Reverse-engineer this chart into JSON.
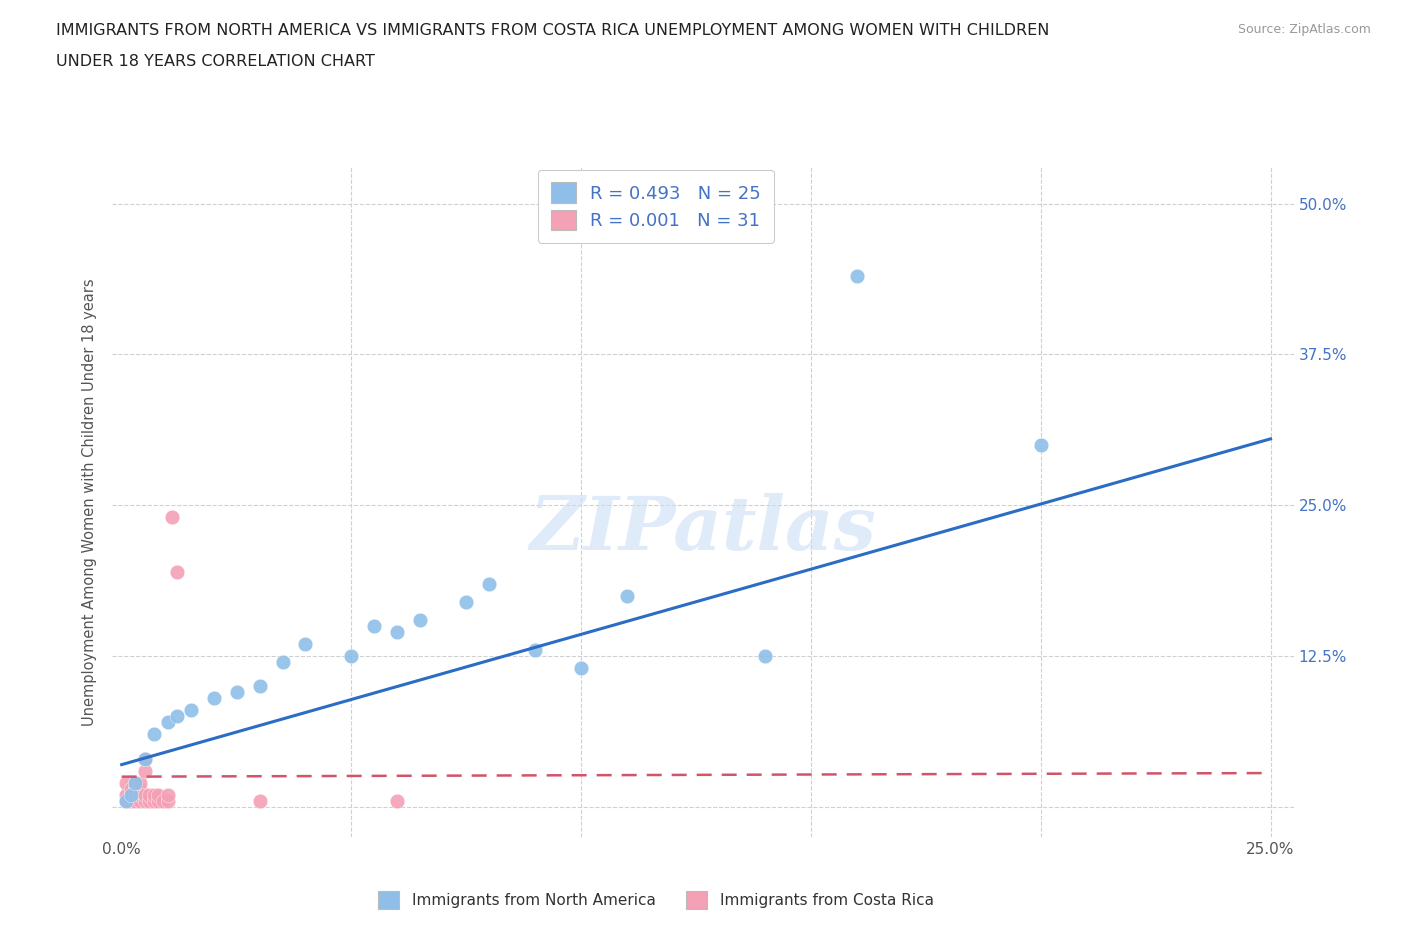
{
  "title_line1": "IMMIGRANTS FROM NORTH AMERICA VS IMMIGRANTS FROM COSTA RICA UNEMPLOYMENT AMONG WOMEN WITH CHILDREN",
  "title_line2": "UNDER 18 YEARS CORRELATION CHART",
  "source_text": "Source: ZipAtlas.com",
  "ylabel": "Unemployment Among Women with Children Under 18 years",
  "watermark": "ZIPatlas",
  "blue_R": 0.493,
  "blue_N": 25,
  "pink_R": 0.001,
  "pink_N": 31,
  "blue_scatter_x": [
    0.001,
    0.002,
    0.003,
    0.005,
    0.007,
    0.01,
    0.012,
    0.015,
    0.02,
    0.025,
    0.03,
    0.035,
    0.04,
    0.05,
    0.055,
    0.06,
    0.065,
    0.075,
    0.08,
    0.09,
    0.1,
    0.11,
    0.14,
    0.2,
    0.16
  ],
  "blue_scatter_y": [
    0.005,
    0.01,
    0.02,
    0.04,
    0.06,
    0.07,
    0.075,
    0.08,
    0.09,
    0.095,
    0.1,
    0.12,
    0.135,
    0.125,
    0.15,
    0.145,
    0.155,
    0.17,
    0.185,
    0.13,
    0.115,
    0.175,
    0.125,
    0.3,
    0.44
  ],
  "pink_scatter_x": [
    0.001,
    0.001,
    0.001,
    0.002,
    0.002,
    0.002,
    0.003,
    0.003,
    0.003,
    0.003,
    0.004,
    0.004,
    0.004,
    0.004,
    0.005,
    0.005,
    0.005,
    0.005,
    0.006,
    0.006,
    0.007,
    0.007,
    0.008,
    0.008,
    0.009,
    0.01,
    0.01,
    0.011,
    0.012,
    0.03,
    0.06
  ],
  "pink_scatter_y": [
    0.005,
    0.01,
    0.02,
    0.005,
    0.01,
    0.015,
    0.005,
    0.01,
    0.015,
    0.02,
    0.005,
    0.01,
    0.015,
    0.02,
    0.005,
    0.01,
    0.03,
    0.04,
    0.005,
    0.01,
    0.005,
    0.01,
    0.005,
    0.01,
    0.005,
    0.005,
    0.01,
    0.24,
    0.195,
    0.005,
    0.005
  ],
  "blue_line_x": [
    0.0,
    0.25
  ],
  "blue_line_y": [
    0.035,
    0.305
  ],
  "pink_line_x": [
    0.0,
    0.25
  ],
  "pink_line_y": [
    0.025,
    0.028
  ],
  "xlim": [
    -0.002,
    0.255
  ],
  "ylim": [
    -0.025,
    0.53
  ],
  "xticks": [
    0.0,
    0.05,
    0.1,
    0.15,
    0.2,
    0.25
  ],
  "yticks": [
    0.0,
    0.125,
    0.25,
    0.375,
    0.5
  ],
  "blue_color": "#8fbfe8",
  "blue_line_color": "#2b6cc4",
  "pink_color": "#f4a0b5",
  "pink_line_color": "#d0546a",
  "grid_color": "#d0d0d0",
  "background_color": "#ffffff",
  "title_color": "#222222",
  "axis_label_color": "#555555",
  "tick_color_right": "#4472c4",
  "legend_text_color": "#4472c4"
}
